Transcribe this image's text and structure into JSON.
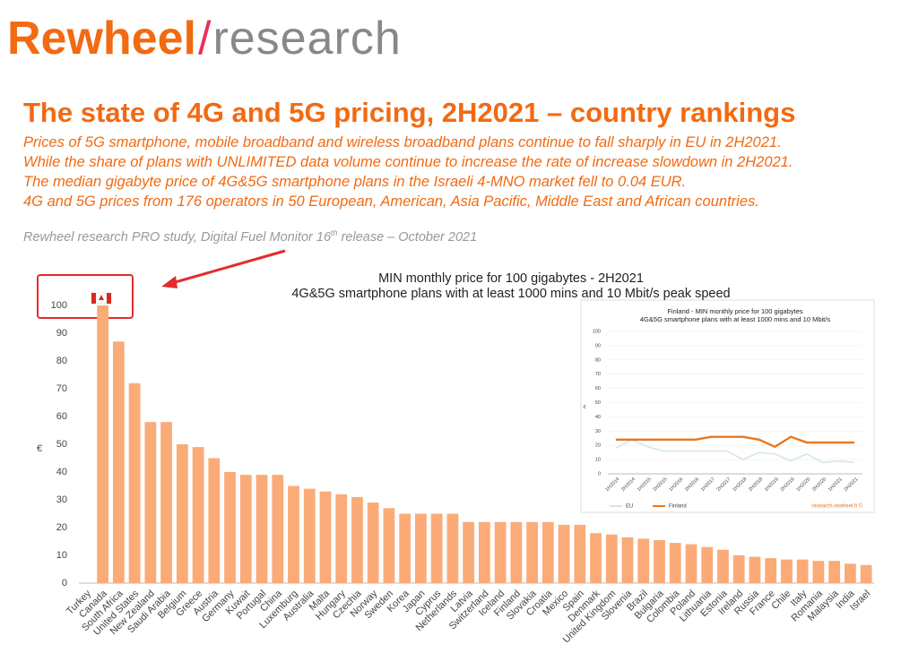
{
  "header": {
    "logo": [
      "Rewheel",
      "/",
      "research"
    ],
    "title": "The state of 4G and 5G pricing, 2H2021 – country rankings",
    "lines": [
      "Prices of 5G smartphone, mobile broadband and wireless broadband plans continue to fall sharply in EU in 2H2021.",
      "While the share of plans with UNLIMITED data volume continue to increase the rate of increase slowdown in 2H2021.",
      "The median gigabyte price of 4G&5G smartphone plans in the Israeli 4-MNO market fell to 0.04 EUR.",
      "4G and 5G prices from 176 operators in 50 European, American, Asia Pacific, Middle East and African countries."
    ],
    "study": [
      "Rewheel research PRO study, Digital Fuel Monitor 16",
      "th",
      " release – October 2021"
    ]
  },
  "chart_data": [
    {
      "type": "bar",
      "title": "MIN monthly price for 100 gigabytes - 2H2021",
      "subtitle": "4G&5G smartphone plans with at least 1000 mins and 10 Mbit/s peak speed",
      "y_label": "€",
      "categories": [
        "Turkey",
        "Canada",
        "South Africa",
        "United States",
        "New Zealand",
        "Saudi Arabia",
        "Belgium",
        "Greece",
        "Austria",
        "Germany",
        "Kuwait",
        "Portugal",
        "China",
        "Luxemburg",
        "Australia",
        "Malta",
        "Hungary",
        "Czechia",
        "Norway",
        "Sweden",
        "Korea",
        "Japan",
        "Cyprus",
        "Netherlands",
        "Latvia",
        "Switzerland",
        "Iceland",
        "Finland",
        "Slovakia",
        "Croatia",
        "Mexico",
        "Spain",
        "Denmark",
        "United Kingdom",
        "Slovenia",
        "Brazil",
        "Bulgaria",
        "Colombia",
        "Poland",
        "Lithuania",
        "Estonia",
        "Ireland",
        "Russia",
        "France",
        "Chile",
        "Italy",
        "Romania",
        "Malaysia",
        "India",
        "Israel"
      ],
      "values": [
        null,
        100,
        87,
        72,
        58,
        58,
        50,
        49,
        45,
        40,
        39,
        39,
        39,
        35,
        34,
        33,
        32,
        31,
        29,
        27,
        25,
        25,
        25,
        25,
        22,
        22,
        22,
        22,
        22,
        22,
        21,
        21,
        18,
        17.5,
        16.5,
        16,
        15.5,
        14.5,
        14,
        13,
        12,
        10,
        9.5,
        9,
        8.5,
        8.5,
        8,
        8,
        7,
        6.5
      ],
      "color": "#fbab78",
      "ylim": [
        0,
        100
      ],
      "yticks": [
        0,
        10,
        20,
        30,
        40,
        50,
        60,
        70,
        80,
        90,
        100
      ],
      "grid": false
    },
    {
      "type": "line",
      "title": "Finland - MIN monthly price for 100 gigabytes",
      "subtitle": "4G&5G smartphone plans with at least 1000 mins and 10 Mbit/s",
      "y_label": "€",
      "categories": [
        "1H2014",
        "2H2014",
        "1H2015",
        "2H2015",
        "1H2016",
        "2H2016",
        "1H2017",
        "2H2017",
        "1H2018",
        "2H2018",
        "1H2019",
        "2H2019",
        "1H2020",
        "2H2020",
        "1H2021",
        "2H2021"
      ],
      "series": [
        {
          "name": "EU",
          "color": "#d4e6ee",
          "values": [
            18,
            24,
            19,
            16,
            16,
            16,
            16,
            16,
            10,
            15,
            14,
            9,
            14,
            8,
            9,
            8
          ]
        },
        {
          "name": "Finland",
          "color": "#e8771e",
          "values": [
            24,
            24,
            24,
            24,
            24,
            24,
            26,
            26,
            26,
            24,
            19,
            26,
            22,
            22,
            22,
            22
          ]
        }
      ],
      "ylim": [
        0,
        100
      ],
      "yticks": [
        0,
        10,
        20,
        30,
        40,
        50,
        60,
        70,
        80,
        90,
        100
      ],
      "grid": true,
      "legend": "bottom",
      "source": "research.rewheel.fi ©"
    }
  ]
}
